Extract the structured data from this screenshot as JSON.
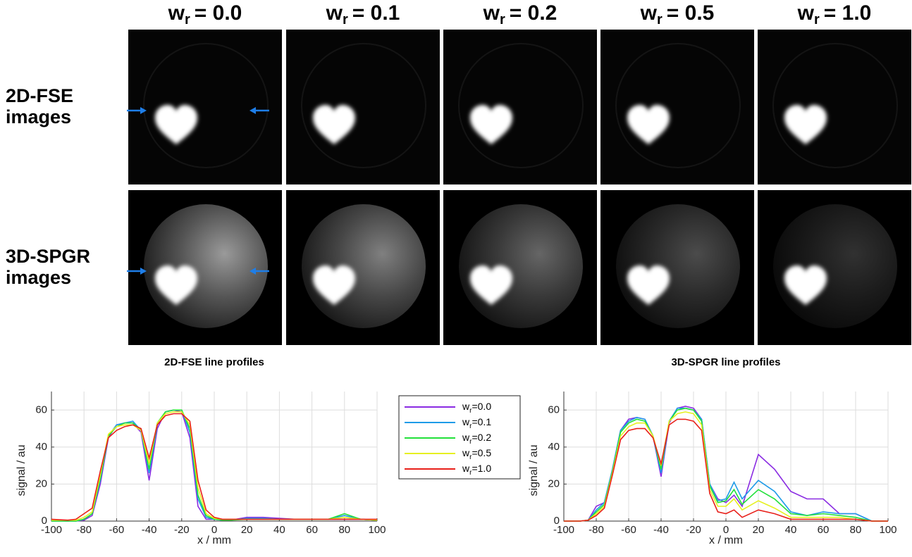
{
  "figure": {
    "header_symbol": "w",
    "header_subscript": "r",
    "column_labels": [
      "= 0.0",
      "= 0.1",
      "= 0.2",
      "= 0.5",
      "= 1.0"
    ],
    "row_labels": [
      [
        "2D-FSE",
        "images"
      ],
      [
        "3D-SPGR",
        "images"
      ]
    ]
  },
  "chart_data": [
    {
      "type": "line",
      "title": "2D-FSE line profiles",
      "xlabel": "x / mm",
      "ylabel": "signal / au",
      "legend_symbol": "w",
      "legend_subscript": "r",
      "xlim": [
        -100,
        100
      ],
      "ylim": [
        0,
        70
      ],
      "xticks": [
        -100,
        -80,
        -60,
        -40,
        -20,
        0,
        20,
        40,
        60,
        80,
        100
      ],
      "yticks": [
        0,
        20,
        40,
        60
      ],
      "grid": true,
      "x": [
        -100,
        -90,
        -85,
        -80,
        -75,
        -70,
        -65,
        -60,
        -55,
        -50,
        -45,
        -40,
        -35,
        -30,
        -25,
        -20,
        -15,
        -10,
        -5,
        0,
        5,
        10,
        20,
        30,
        40,
        50,
        60,
        70,
        80,
        90,
        100
      ],
      "series": [
        {
          "name": "=0.0",
          "color": "#8a2be2",
          "values": [
            0,
            0,
            0,
            0.5,
            3,
            20,
            45,
            52,
            53,
            53,
            48,
            22,
            50,
            59,
            60,
            59,
            45,
            8,
            1,
            1,
            0.5,
            0.5,
            2,
            2,
            1.5,
            1,
            1,
            1,
            1,
            1,
            0.5
          ]
        },
        {
          "name": "=0.1",
          "color": "#1e9be8",
          "values": [
            0,
            0,
            0,
            1,
            4,
            22,
            46,
            52,
            53,
            54,
            49,
            26,
            52,
            59,
            60,
            60,
            48,
            12,
            2,
            1,
            0.5,
            0.5,
            1.5,
            1.5,
            1,
            1,
            1,
            1,
            3,
            1,
            0.5
          ]
        },
        {
          "name": "=0.2",
          "color": "#22e03a",
          "values": [
            0,
            0,
            0,
            1,
            4,
            23,
            46,
            51,
            53,
            53,
            49,
            28,
            53,
            59,
            60,
            60,
            50,
            14,
            3,
            1,
            0.5,
            0.5,
            1,
            1,
            1,
            1,
            1,
            1,
            4,
            1,
            0.5
          ]
        },
        {
          "name": "=0.5",
          "color": "#e6f020",
          "values": [
            0.5,
            0.5,
            0.5,
            2,
            5,
            25,
            47,
            51,
            52,
            52,
            49,
            31,
            53,
            58,
            59,
            59,
            52,
            18,
            4,
            1.5,
            1,
            1,
            1,
            1,
            1,
            1,
            1,
            1,
            2,
            1,
            0.5
          ]
        },
        {
          "name": "=1.0",
          "color": "#e8201a",
          "values": [
            1,
            0.5,
            1,
            4,
            7,
            27,
            45,
            49,
            51,
            52,
            50,
            34,
            52,
            57,
            58,
            58,
            54,
            22,
            6,
            2,
            1,
            1,
            1,
            1,
            1,
            1,
            1,
            1,
            1,
            1,
            1
          ]
        }
      ]
    },
    {
      "type": "line",
      "title": "3D-SPGR line profiles",
      "xlabel": "x / mm",
      "ylabel": "signal / au",
      "xlim": [
        -100,
        100
      ],
      "ylim": [
        0,
        70
      ],
      "xticks": [
        -100,
        -80,
        -60,
        -40,
        -20,
        0,
        20,
        40,
        60,
        80,
        100
      ],
      "yticks": [
        0,
        20,
        40,
        60
      ],
      "grid": true,
      "x": [
        -100,
        -90,
        -85,
        -80,
        -75,
        -70,
        -65,
        -60,
        -55,
        -50,
        -45,
        -40,
        -35,
        -30,
        -25,
        -20,
        -15,
        -10,
        -5,
        0,
        5,
        10,
        20,
        30,
        40,
        50,
        60,
        70,
        80,
        90,
        100
      ],
      "series": [
        {
          "color": "#8a2be2",
          "values": [
            0,
            0,
            0.5,
            8,
            10,
            28,
            49,
            55,
            56,
            55,
            46,
            24,
            53,
            61,
            62,
            61,
            55,
            20,
            12,
            10,
            14,
            8,
            36,
            28,
            16,
            12,
            12,
            4,
            4,
            0,
            0
          ]
        },
        {
          "color": "#1e9be8",
          "values": [
            0,
            0,
            0.5,
            6,
            10,
            28,
            49,
            54,
            56,
            55,
            46,
            26,
            54,
            61,
            61,
            60,
            55,
            20,
            11,
            12,
            21,
            12,
            22,
            16,
            5,
            3,
            5,
            4,
            4,
            0,
            0
          ]
        },
        {
          "color": "#22e03a",
          "values": [
            0,
            0,
            0.5,
            5,
            9,
            27,
            48,
            53,
            55,
            54,
            46,
            28,
            54,
            60,
            61,
            60,
            54,
            19,
            10,
            11,
            17,
            9,
            17,
            12,
            4,
            3,
            4,
            3,
            2,
            0,
            0
          ]
        },
        {
          "color": "#e6f020",
          "values": [
            0,
            0,
            0.5,
            4,
            8,
            26,
            46,
            51,
            53,
            53,
            46,
            30,
            54,
            58,
            59,
            58,
            52,
            17,
            8,
            8,
            12,
            6,
            11,
            7,
            2,
            2,
            2,
            2,
            1,
            0,
            0
          ]
        },
        {
          "color": "#e8201a",
          "values": [
            0,
            0,
            0.5,
            3,
            7,
            25,
            44,
            49,
            50,
            50,
            45,
            31,
            52,
            55,
            55,
            54,
            49,
            15,
            5,
            4,
            6,
            2,
            6,
            4,
            1,
            1,
            1,
            1,
            1,
            0,
            0
          ]
        }
      ]
    }
  ]
}
